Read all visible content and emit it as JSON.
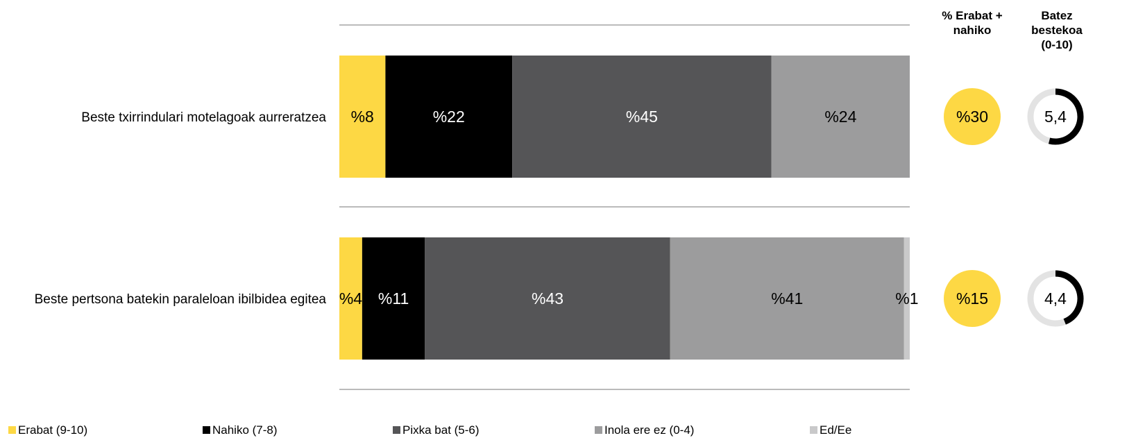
{
  "headers": {
    "pct_col": "% Erabat + nahiko",
    "avg_col": "Batez bestekoa (0-10)"
  },
  "colors": {
    "erabat": "#FDD844",
    "nahiko": "#000000",
    "pixka": "#555557",
    "inola": "#9C9C9D",
    "edee": "#C9C9CA",
    "circle": "#FDD844",
    "ring_bg": "#E3E3E3",
    "ring_fg": "#000000"
  },
  "chart_data": {
    "type": "bar",
    "orientation": "horizontal-stacked-100",
    "categories": [
      "Beste txirrindulari motelagoak aurreratzea",
      "Beste pertsona batekin paraleloan ibilbidea egitea"
    ],
    "series": [
      {
        "name": "Erabat (9-10)",
        "key": "erabat",
        "values": [
          8,
          4
        ],
        "labels": [
          "%8",
          "%4"
        ]
      },
      {
        "name": "Nahiko (7-8)",
        "key": "nahiko",
        "values": [
          22,
          11
        ],
        "labels": [
          "%22",
          "%11"
        ]
      },
      {
        "name": "Pixka bat (5-6)",
        "key": "pixka",
        "values": [
          45,
          43
        ],
        "labels": [
          "%45",
          "%43"
        ]
      },
      {
        "name": "Inola ere ez (0-4)",
        "key": "inola",
        "values": [
          24,
          41
        ],
        "labels": [
          "%24",
          "%41"
        ]
      },
      {
        "name": "Ed/Ee",
        "key": "edee",
        "values": [
          0,
          1
        ],
        "labels": [
          "",
          "%1"
        ]
      }
    ],
    "pct_erabat_nahiko": [
      30,
      15
    ],
    "pct_erabat_nahiko_labels": [
      "%30",
      "%15"
    ],
    "averages": [
      5.4,
      4.4
    ],
    "average_labels": [
      "5,4",
      "4,4"
    ],
    "average_scale": [
      0,
      10
    ],
    "legend_position": "bottom"
  }
}
